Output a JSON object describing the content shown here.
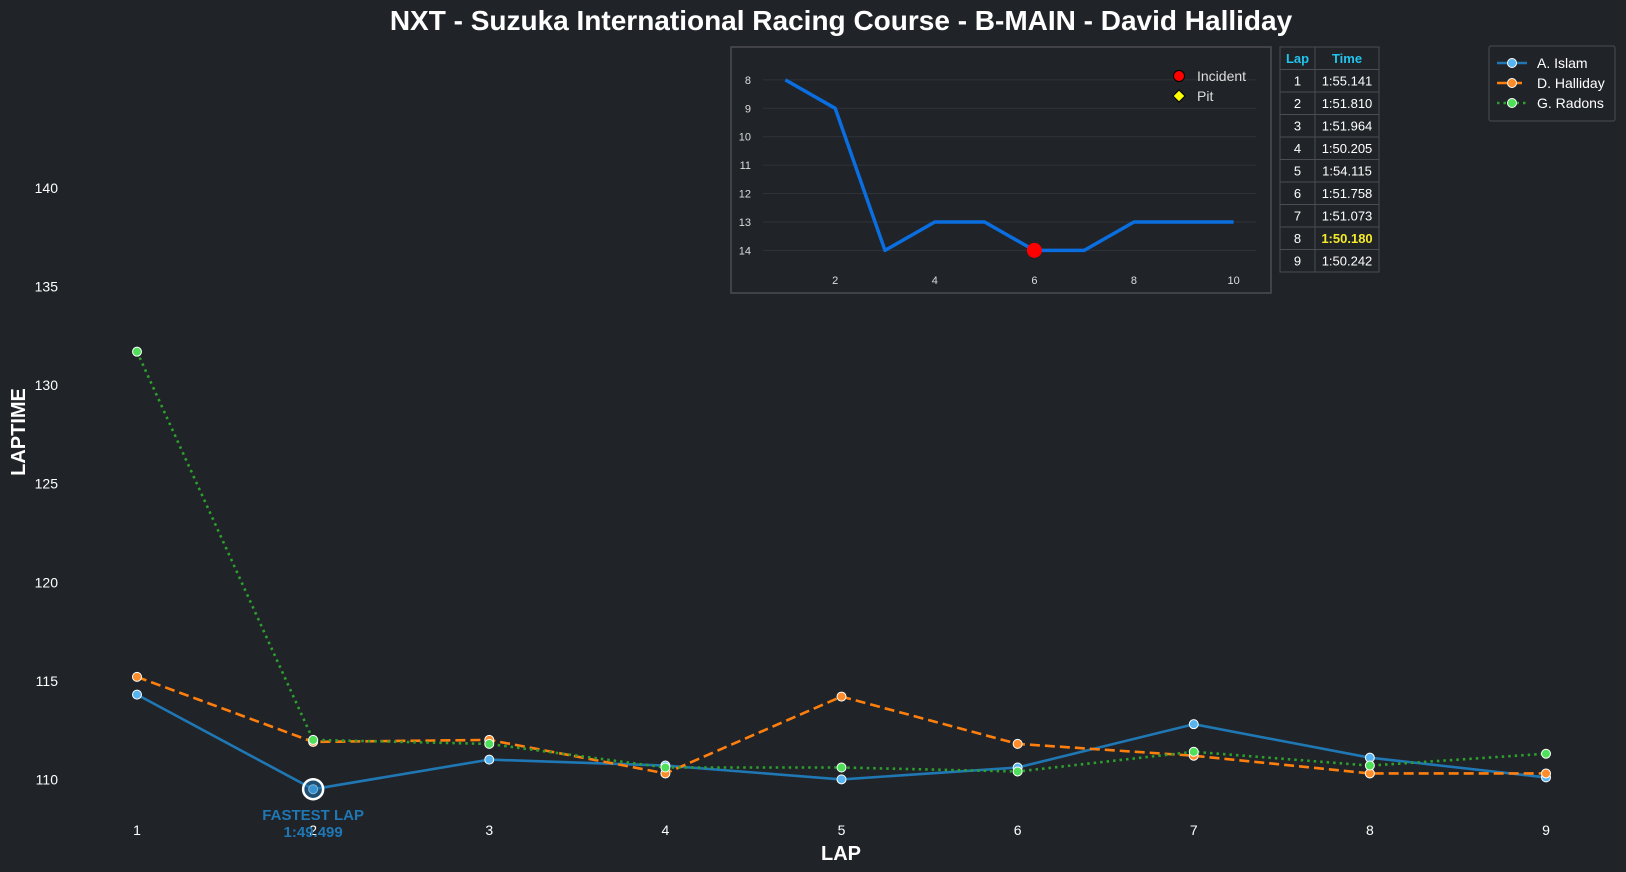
{
  "chart_data": [
    {
      "type": "line",
      "title": "NXT - Suzuka International Racing Course - B-MAIN - David Halliday",
      "xlabel": "LAP",
      "ylabel": "LAPTIME",
      "x": [
        1,
        2,
        3,
        4,
        5,
        6,
        7,
        8,
        9
      ],
      "xticks": [
        1,
        2,
        3,
        4,
        5,
        6,
        7,
        8,
        9
      ],
      "yticks": [
        110,
        115,
        120,
        125,
        130,
        135,
        140
      ],
      "ylim": [
        108.8,
        146.5
      ],
      "grid": false,
      "legend_position": "top-right",
      "series": [
        {
          "name": "A. Islam",
          "color": "#1f77b4",
          "marker_color": "#58b4f0",
          "style": "solid",
          "values": [
            114.3,
            109.5,
            111.0,
            110.7,
            110.0,
            110.6,
            112.8,
            111.1,
            110.1
          ]
        },
        {
          "name": "D. Halliday",
          "color": "#ff7f0e",
          "marker_color": "#ff8c2a",
          "style": "dashed",
          "values": [
            115.2,
            111.9,
            112.0,
            110.3,
            114.2,
            111.8,
            111.2,
            110.3,
            110.3
          ]
        },
        {
          "name": "G. Radons",
          "color": "#2ca02c",
          "marker_color": "#4fe05a",
          "style": "dotted",
          "values": [
            131.7,
            112.0,
            111.8,
            110.6,
            110.6,
            110.4,
            111.4,
            110.7,
            111.3
          ]
        }
      ],
      "annotation": {
        "text_line1": "FASTEST LAP",
        "text_line2": "1:49.499",
        "x": 2,
        "y": 109.5,
        "color": "#1f77b4"
      }
    },
    {
      "type": "line",
      "title": "",
      "x": [
        1,
        2,
        3,
        4,
        5,
        6,
        7,
        8,
        9,
        10
      ],
      "values": [
        8,
        9,
        14,
        13,
        13,
        14,
        14,
        13,
        13,
        13
      ],
      "xticks": [
        2,
        4,
        6,
        8,
        10
      ],
      "yticks": [
        8,
        9,
        10,
        11,
        12,
        13,
        14
      ],
      "xlim": [
        0.55,
        10.45
      ],
      "ylim": [
        14.55,
        7.3
      ],
      "y_inverted": true,
      "grid": true,
      "line_color": "#0a6ee0",
      "legend_position": "top-right",
      "legend": [
        {
          "label": "Incident",
          "marker": "circle",
          "color": "#ff0000"
        },
        {
          "label": "Pit",
          "marker": "diamond",
          "color": "#ffff00"
        }
      ],
      "incidents": [
        {
          "x": 6,
          "y": 14
        }
      ],
      "pits": []
    },
    {
      "type": "table",
      "columns": [
        "Lap",
        "Time"
      ],
      "rows": [
        [
          "1",
          "1:55.141"
        ],
        [
          "2",
          "1:51.810"
        ],
        [
          "3",
          "1:51.964"
        ],
        [
          "4",
          "1:50.205"
        ],
        [
          "5",
          "1:54.115"
        ],
        [
          "6",
          "1:51.758"
        ],
        [
          "7",
          "1:51.073"
        ],
        [
          "8",
          "1:50.180"
        ],
        [
          "9",
          "1:50.242"
        ]
      ],
      "best_row": 7,
      "header_color": "#22c4ee",
      "best_color": "#f4ea2a"
    }
  ]
}
